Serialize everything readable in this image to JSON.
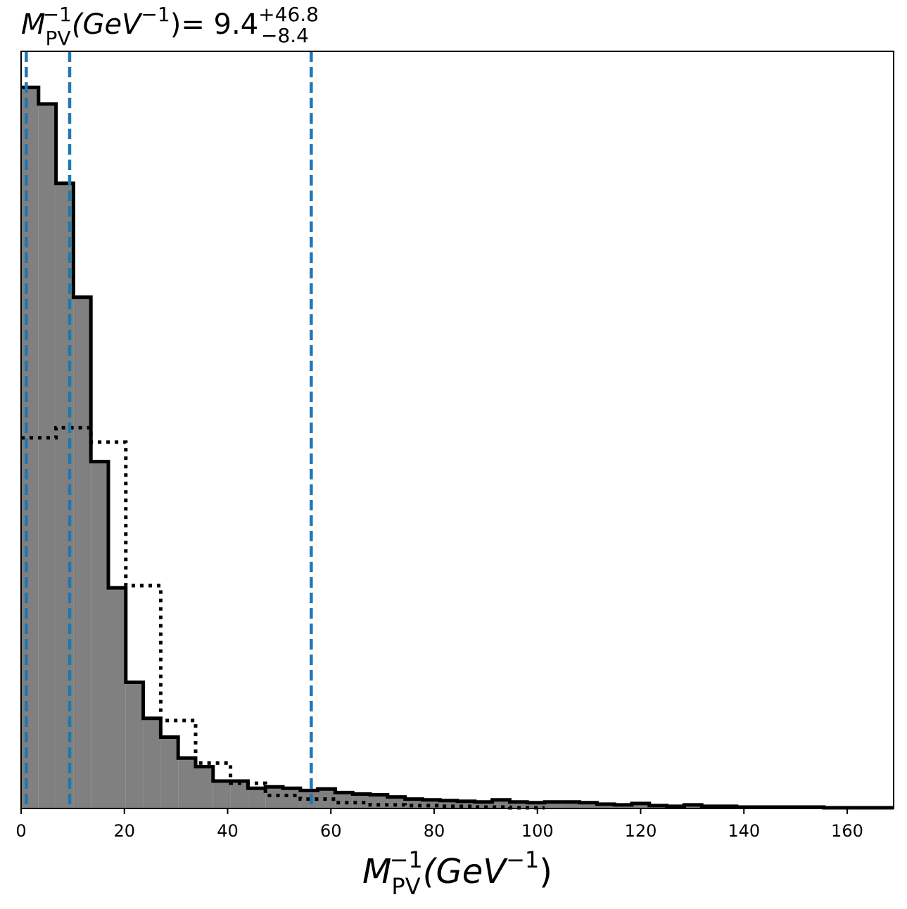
{
  "chart_data": {
    "type": "histogram",
    "title": {
      "symbol": "M",
      "subscript": "PV",
      "superscript": "−1",
      "unit": "(GeV",
      "unit_sup": "−1",
      "unit_close": ")",
      "equals": "= ",
      "value": "9.4",
      "err_plus": "+46.8",
      "err_minus": "−8.4"
    },
    "xlabel": {
      "symbol": "M",
      "subscript": "PV",
      "superscript": "−1",
      "unit": "(GeV",
      "unit_sup": "−1",
      "unit_close": ")"
    },
    "xlim": [
      0,
      169
    ],
    "ylim": [
      0,
      1.05
    ],
    "x_ticks": [
      0,
      20,
      40,
      60,
      80,
      100,
      120,
      140,
      160
    ],
    "x_tick_labels": [
      "0",
      "20",
      "40",
      "60",
      "80",
      "100",
      "120",
      "140",
      "160"
    ],
    "y_ticks_shown": false,
    "grid": false,
    "colors": {
      "posterior_fill": "#808080",
      "posterior_edge": "#000000",
      "prior_line": "#000000",
      "quantile_lines": "#1f77b4"
    },
    "series": [
      {
        "style": "filled-step",
        "bin_edges": [
          0,
          3.38,
          6.76,
          10.14,
          13.52,
          16.9,
          20.28,
          23.66,
          27.04,
          30.42,
          33.8,
          37.18,
          40.56,
          43.94,
          47.32,
          50.7,
          54.08,
          57.46,
          60.84,
          64.22,
          67.6,
          70.98,
          74.36,
          77.74,
          81.12,
          84.5,
          87.88,
          91.26,
          94.64,
          98.02,
          101.4,
          104.78,
          108.16,
          111.54,
          114.92,
          118.3,
          121.68,
          125.06,
          128.44,
          131.82,
          135.2,
          138.58,
          141.96,
          145.34,
          148.72,
          152.1,
          155.48,
          158.86,
          162.24,
          165.62,
          169
        ],
        "values": [
          1.0,
          0.977,
          0.867,
          0.709,
          0.481,
          0.306,
          0.175,
          0.125,
          0.099,
          0.07,
          0.058,
          0.038,
          0.038,
          0.028,
          0.03,
          0.028,
          0.025,
          0.027,
          0.022,
          0.02,
          0.019,
          0.016,
          0.013,
          0.012,
          0.011,
          0.01,
          0.009,
          0.012,
          0.009,
          0.008,
          0.009,
          0.009,
          0.008,
          0.006,
          0.005,
          0.007,
          0.004,
          0.003,
          0.005,
          0.003,
          0.003,
          0.002,
          0.002,
          0.002,
          0.002,
          0.002,
          0.001,
          0.001,
          0.001,
          0.001
        ]
      },
      {
        "style": "dotted-step",
        "bin_edges": [
          0,
          6.76,
          13.52,
          20.28,
          27.04,
          33.8,
          40.56,
          47.32,
          54.08,
          60.84,
          67.6,
          74.36,
          81.12,
          87.88,
          94.64,
          101.4
        ],
        "values": [
          0.514,
          0.528,
          0.508,
          0.309,
          0.122,
          0.063,
          0.035,
          0.018,
          0.013,
          0.008,
          0.005,
          0.004,
          0.003,
          0.002,
          0.001
        ]
      }
    ],
    "vlines": [
      1.0,
      9.4,
      56.2
    ]
  }
}
